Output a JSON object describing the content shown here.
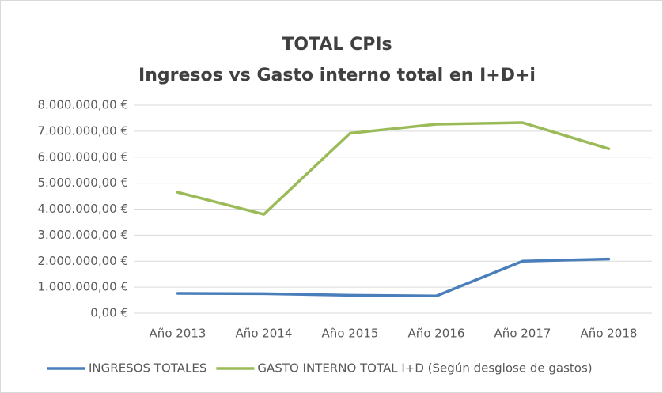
{
  "chart_data": {
    "type": "line",
    "title": "TOTAL CPIs",
    "subtitle": "Ingresos vs Gasto interno total en I+D+i",
    "categories": [
      "Año 2013",
      "Año 2014",
      "Año 2015",
      "Año 2016",
      "Año 2017",
      "Año 2018"
    ],
    "series": [
      {
        "name": "INGRESOS TOTALES",
        "color": "#4a7ebb",
        "values": [
          760000,
          750000,
          690000,
          660000,
          2000000,
          2080000
        ]
      },
      {
        "name": "GASTO INTERNO TOTAL I+D (Según desglose de gastos)",
        "color": "#9bbb59",
        "values": [
          4650000,
          3800000,
          6920000,
          7270000,
          7330000,
          6320000
        ]
      }
    ],
    "ylim": [
      0,
      8000000
    ],
    "yticks": [
      {
        "value": 0,
        "label": "0,00 €"
      },
      {
        "value": 1000000,
        "label": "1.000.000,00 €"
      },
      {
        "value": 2000000,
        "label": "2.000.000,00 €"
      },
      {
        "value": 3000000,
        "label": "3.000.000,00 €"
      },
      {
        "value": 4000000,
        "label": "4.000.000,00 €"
      },
      {
        "value": 5000000,
        "label": "5.000.000,00 €"
      },
      {
        "value": 6000000,
        "label": "6.000.000,00 €"
      },
      {
        "value": 7000000,
        "label": "7.000.000,00 €"
      },
      {
        "value": 8000000,
        "label": "8.000.000,00 €"
      }
    ],
    "grid": true,
    "legend": "bottom"
  }
}
